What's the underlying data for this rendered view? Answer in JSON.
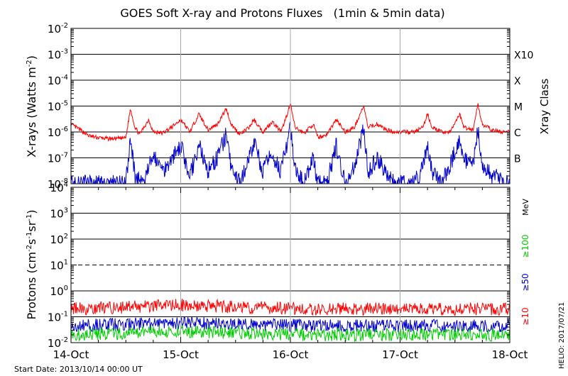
{
  "chart_data": [
    {
      "type": "line",
      "title": "GOES Soft X-ray and Protons Fluxes   (1min & 5min data)",
      "ylabel": "X-rays (Watts m⁻²)",
      "ylabel_parts": [
        "X-rays (Watts m",
        "-2",
        ")"
      ],
      "yscale": "log",
      "ylim": [
        1e-08,
        0.01
      ],
      "ytick_exponents": [
        -2,
        -3,
        -4,
        -5,
        -6,
        -7,
        -8
      ],
      "right_axis_label": "Xray Class",
      "right_ticks": [
        {
          "label": "X10",
          "value": 0.001
        },
        {
          "label": "X",
          "value": 0.0001
        },
        {
          "label": "M",
          "value": 1e-05
        },
        {
          "label": "C",
          "value": 1e-06
        },
        {
          "label": "B",
          "value": 1e-07
        }
      ],
      "grid": true,
      "series": [
        {
          "color": "#ff0000",
          "points": [
            [
              "2013-10-14 00:00",
              2e-06
            ],
            [
              "2013-10-14 02:00",
              1.2e-06
            ],
            [
              "2013-10-14 04:00",
              7e-07
            ],
            [
              "2013-10-14 06:00",
              6e-07
            ],
            [
              "2013-10-14 08:00",
              5.5e-07
            ],
            [
              "2013-10-14 10:00",
              5.5e-07
            ],
            [
              "2013-10-14 12:00",
              6e-07
            ],
            [
              "2013-10-14 13:00",
              8e-06
            ],
            [
              "2013-10-14 14:00",
              1.5e-06
            ],
            [
              "2013-10-14 15:00",
              8e-07
            ],
            [
              "2013-10-14 17:00",
              3e-06
            ],
            [
              "2013-10-14 18:00",
              1e-06
            ],
            [
              "2013-10-14 20:00",
              9e-07
            ],
            [
              "2013-10-14 22:00",
              1.5e-06
            ],
            [
              "2013-10-15 00:00",
              3e-06
            ],
            [
              "2013-10-15 02:00",
              1e-06
            ],
            [
              "2013-10-15 04:00",
              5e-06
            ],
            [
              "2013-10-15 06:00",
              1.2e-06
            ],
            [
              "2013-10-15 08:00",
              2e-06
            ],
            [
              "2013-10-15 10:00",
              8e-06
            ],
            [
              "2013-10-15 11:00",
              2e-06
            ],
            [
              "2013-10-15 13:00",
              8e-07
            ],
            [
              "2013-10-15 15:00",
              1.5e-06
            ],
            [
              "2013-10-15 16:00",
              3e-06
            ],
            [
              "2013-10-15 18:00",
              1e-06
            ],
            [
              "2013-10-15 20:00",
              2.5e-06
            ],
            [
              "2013-10-15 22:00",
              1e-06
            ],
            [
              "2013-10-16 00:00",
              1.2e-05
            ],
            [
              "2013-10-16 01:00",
              1.5e-06
            ],
            [
              "2013-10-16 03:00",
              9e-07
            ],
            [
              "2013-10-16 05:00",
              2e-06
            ],
            [
              "2013-10-16 06:00",
              6e-07
            ],
            [
              "2013-10-16 08:00",
              8e-07
            ],
            [
              "2013-10-16 10:00",
              3e-06
            ],
            [
              "2013-10-16 12:00",
              1e-06
            ],
            [
              "2013-10-16 14:00",
              1.5e-06
            ],
            [
              "2013-10-16 16:00",
              1e-05
            ],
            [
              "2013-10-16 17:00",
              1.5e-06
            ],
            [
              "2013-10-16 19:00",
              2e-06
            ],
            [
              "2013-10-16 21:00",
              1.2e-06
            ],
            [
              "2013-10-16 23:00",
              1e-06
            ],
            [
              "2013-10-17 01:00",
              1e-06
            ],
            [
              "2013-10-17 03:00",
              1e-06
            ],
            [
              "2013-10-17 05:00",
              1.5e-06
            ],
            [
              "2013-10-17 06:00",
              5e-06
            ],
            [
              "2013-10-17 07:00",
              1.5e-06
            ],
            [
              "2013-10-17 09:00",
              1e-06
            ],
            [
              "2013-10-17 11:00",
              1e-06
            ],
            [
              "2013-10-17 13:00",
              5e-06
            ],
            [
              "2013-10-17 14:00",
              1.5e-06
            ],
            [
              "2013-10-17 16:00",
              1.2e-06
            ],
            [
              "2013-10-17 17:00",
              1.2e-05
            ],
            [
              "2013-10-17 18:00",
              2e-06
            ],
            [
              "2013-10-17 20:00",
              1.2e-06
            ],
            [
              "2013-10-17 22:00",
              1e-06
            ],
            [
              "2013-10-18 00:00",
              1e-06
            ]
          ]
        },
        {
          "color": "#0000cc",
          "points": [
            [
              "2013-10-14 00:00",
              1e-08
            ],
            [
              "2013-10-14 03:00",
              1e-08
            ],
            [
              "2013-10-14 06:00",
              1e-08
            ],
            [
              "2013-10-14 09:00",
              1e-08
            ],
            [
              "2013-10-14 12:00",
              1e-08
            ],
            [
              "2013-10-14 13:00",
              6e-07
            ],
            [
              "2013-10-14 14:00",
              2e-08
            ],
            [
              "2013-10-14 16:00",
              1e-08
            ],
            [
              "2013-10-14 18:00",
              1.5e-07
            ],
            [
              "2013-10-14 20:00",
              3e-08
            ],
            [
              "2013-10-14 22:00",
              1e-07
            ],
            [
              "2013-10-15 00:00",
              3e-07
            ],
            [
              "2013-10-15 02:00",
              2e-08
            ],
            [
              "2013-10-15 04:00",
              3e-07
            ],
            [
              "2013-10-15 06:00",
              3e-08
            ],
            [
              "2013-10-15 08:00",
              1e-07
            ],
            [
              "2013-10-15 10:00",
              8e-07
            ],
            [
              "2013-10-15 11:00",
              4e-08
            ],
            [
              "2013-10-15 13:00",
              1e-08
            ],
            [
              "2013-10-15 15:00",
              1e-07
            ],
            [
              "2013-10-15 16:00",
              4e-07
            ],
            [
              "2013-10-15 18:00",
              3e-08
            ],
            [
              "2013-10-15 20:00",
              1.5e-07
            ],
            [
              "2013-10-15 22:00",
              3e-08
            ],
            [
              "2013-10-16 00:00",
              1.5e-06
            ],
            [
              "2013-10-16 01:00",
              3e-08
            ],
            [
              "2013-10-16 03:00",
              1e-08
            ],
            [
              "2013-10-16 05:00",
              1e-07
            ],
            [
              "2013-10-16 06:00",
              1e-08
            ],
            [
              "2013-10-16 08:00",
              1e-08
            ],
            [
              "2013-10-16 10:00",
              3e-07
            ],
            [
              "2013-10-16 12:00",
              1e-08
            ],
            [
              "2013-10-16 14:00",
              5e-08
            ],
            [
              "2013-10-16 16:00",
              1.2e-06
            ],
            [
              "2013-10-16 17:00",
              3e-08
            ],
            [
              "2013-10-16 19:00",
              1e-07
            ],
            [
              "2013-10-16 21:00",
              3e-08
            ],
            [
              "2013-10-16 23:00",
              1e-08
            ],
            [
              "2013-10-17 01:00",
              1e-08
            ],
            [
              "2013-10-17 03:00",
              1e-08
            ],
            [
              "2013-10-17 05:00",
              4e-08
            ],
            [
              "2013-10-17 06:00",
              3e-07
            ],
            [
              "2013-10-17 07:00",
              3e-08
            ],
            [
              "2013-10-17 09:00",
              1e-08
            ],
            [
              "2013-10-17 11:00",
              5e-08
            ],
            [
              "2013-10-17 13:00",
              6e-07
            ],
            [
              "2013-10-17 14:00",
              8e-08
            ],
            [
              "2013-10-17 16:00",
              5e-08
            ],
            [
              "2013-10-17 17:00",
              1.5e-06
            ],
            [
              "2013-10-17 18:00",
              5e-08
            ],
            [
              "2013-10-17 20:00",
              2e-08
            ],
            [
              "2013-10-17 22:00",
              1.5e-08
            ],
            [
              "2013-10-18 00:00",
              1e-08
            ]
          ]
        }
      ]
    },
    {
      "type": "line",
      "ylabel": "Protons (cm⁻²s⁻¹sr⁻¹)",
      "ylabel_parts": [
        "Protons (cm",
        "-2",
        "s",
        "-1",
        "sr",
        "-1",
        ")"
      ],
      "yscale": "log",
      "ylim": [
        0.01,
        10000
      ],
      "ytick_exponents": [
        4,
        3,
        2,
        1,
        0,
        -1,
        -2
      ],
      "dashed_level": 10,
      "right_unit": "MeV",
      "grid": true,
      "series": [
        {
          "name": "≥10",
          "color": "#ff0000",
          "typical": 0.2,
          "peak": 0.35
        },
        {
          "name": "≥50",
          "color": "#0000cc",
          "typical": 0.045,
          "peak": 0.07
        },
        {
          "name": "≥100",
          "color": "#00cc00",
          "typical": 0.02,
          "peak": 0.035
        }
      ]
    }
  ],
  "x_axis": {
    "start": "2013-10-14",
    "end": "2013-10-18",
    "tick_labels": [
      "14-Oct",
      "15-Oct",
      "16-Oct",
      "17-Oct",
      "18-Oct"
    ]
  },
  "footer": {
    "start_date": "Start Date: 2013/10/14 00:00 UT",
    "credit": "HELIO: 2017/07/21"
  }
}
